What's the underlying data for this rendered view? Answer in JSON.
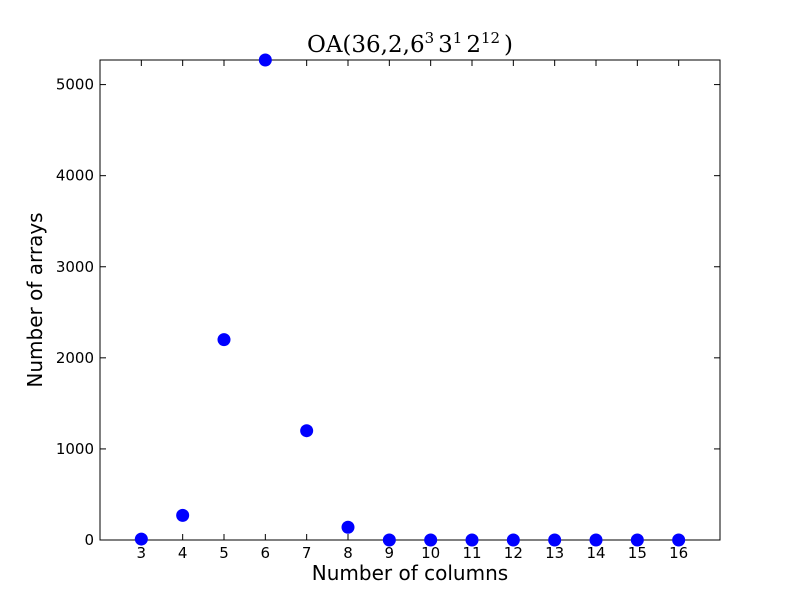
{
  "chart_data": {
    "type": "scatter",
    "title": {
      "base": "OA(36,2,",
      "parts": [
        {
          "base": "6",
          "exp": "3"
        },
        {
          "base": "3",
          "exp": "1"
        },
        {
          "base": "2",
          "exp": "12"
        }
      ],
      "close": ")"
    },
    "xlabel": "Number of columns",
    "ylabel": "Number of arrays",
    "xlim": [
      2,
      17
    ],
    "ylim": [
      0,
      5270
    ],
    "x_ticks": [
      "3",
      "4",
      "5",
      "6",
      "7",
      "8",
      "9",
      "10",
      "11",
      "12",
      "13",
      "14",
      "15",
      "16"
    ],
    "y_ticks": [
      "0",
      "1000",
      "2000",
      "3000",
      "4000",
      "5000"
    ],
    "marker_color": "#0000ff",
    "grid": false,
    "x": [
      3,
      4,
      5,
      6,
      7,
      8,
      9,
      10,
      11,
      12,
      13,
      14,
      15,
      16
    ],
    "y": [
      10,
      270,
      2200,
      5270,
      1200,
      140,
      0,
      0,
      0,
      0,
      0,
      0,
      0,
      0
    ]
  }
}
